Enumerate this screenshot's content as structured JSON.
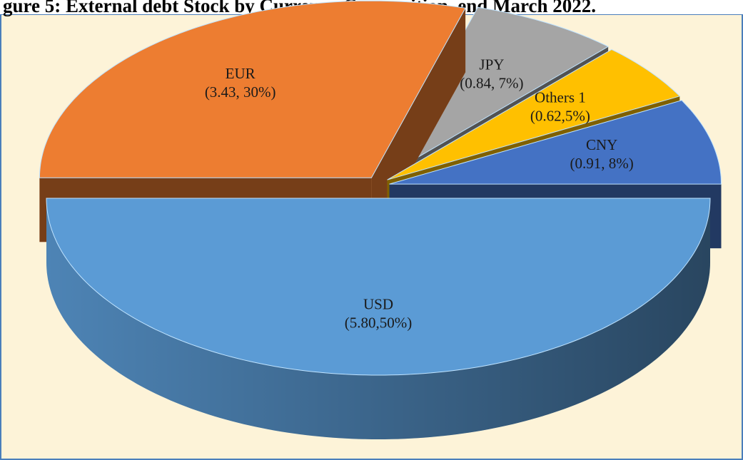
{
  "chart_data": {
    "type": "pie",
    "title": "gure 5: External debt Stock by Currency Composition, end March 2022.",
    "categories": [
      "USD",
      "EUR",
      "JPY",
      "Others 1",
      "CNY"
    ],
    "values": [
      5.8,
      3.43,
      0.84,
      0.62,
      0.91
    ],
    "value_labels": [
      "(5.80,50%)",
      "(3.43, 30%)",
      "(0.84, 7%)",
      "(0.62,5%)",
      "(0.91, 8%)"
    ],
    "colors": [
      "#5b9bd5",
      "#ed7d31",
      "#a5a5a5",
      "#ffc000",
      "#4472c4"
    ]
  }
}
